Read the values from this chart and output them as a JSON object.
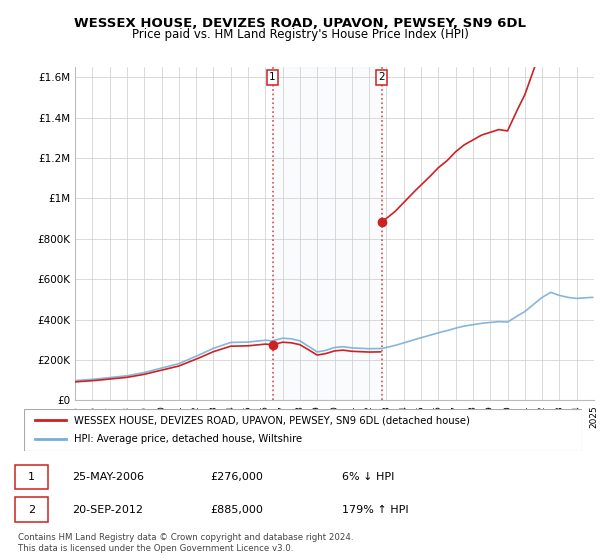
{
  "title": "WESSEX HOUSE, DEVIZES ROAD, UPAVON, PEWSEY, SN9 6DL",
  "subtitle": "Price paid vs. HM Land Registry's House Price Index (HPI)",
  "sale1_year": 2006.42,
  "sale1_price": 276000,
  "sale2_year": 2012.72,
  "sale2_price": 885000,
  "hpi_color": "#7aaed6",
  "sale_color": "#cc2222",
  "background_color": "#ffffff",
  "grid_color": "#cccccc",
  "ylim": [
    0,
    1650000
  ],
  "xlim": [
    1995.0,
    2025.0
  ],
  "ylabel_ticks": [
    0,
    200000,
    400000,
    600000,
    800000,
    1000000,
    1200000,
    1400000,
    1600000
  ],
  "ylabel_labels": [
    "£0",
    "£200K",
    "£400K",
    "£600K",
    "£800K",
    "£1M",
    "£1.2M",
    "£1.4M",
    "£1.6M"
  ],
  "legend_label_red": "WESSEX HOUSE, DEVIZES ROAD, UPAVON, PEWSEY, SN9 6DL (detached house)",
  "legend_label_blue": "HPI: Average price, detached house, Wiltshire",
  "table_row1": [
    "1",
    "25-MAY-2006",
    "£276,000",
    "6% ↓ HPI"
  ],
  "table_row2": [
    "2",
    "20-SEP-2012",
    "£885,000",
    "179% ↑ HPI"
  ],
  "footnote": "Contains HM Land Registry data © Crown copyright and database right 2024.\nThis data is licensed under the Open Government Licence v3.0.",
  "title_fontsize": 9.5,
  "subtitle_fontsize": 8.5
}
